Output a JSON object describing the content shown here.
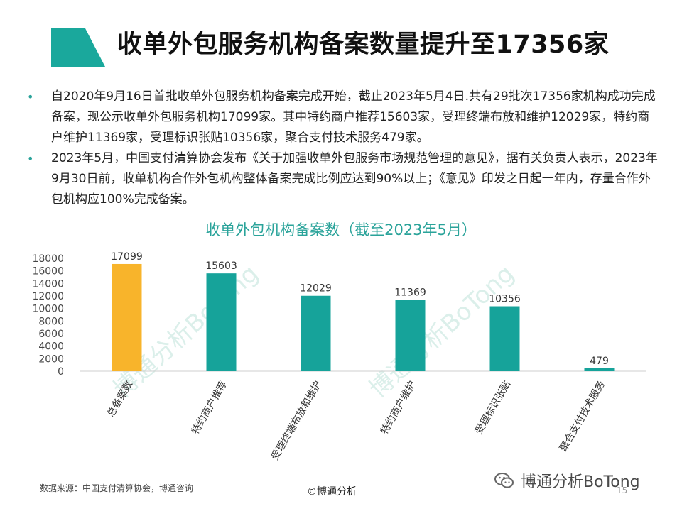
{
  "slide": {
    "title": "收单外包服务机构备案数量提升至17356家",
    "accent_color": "#2aa39a",
    "highlight_color": "#f8b42b",
    "bullets": [
      "自2020年9月16日首批收单外包服务机构备案完成开始，截止2023年5月4日.共有29批次17356家机构成功完成备案，现公示收单外包服务机构17099家。其中特约商户推荐15603家，受理终端布放和维护12029家，特约商户维护11369家，受理标识张贴10356家，聚合支付技术服务479家。",
      "2023年5月，中国支付清算协会发布《关于加强收单外包服务市场规范管理的意见》，据有关负责人表示，2023年9月30日前，收单机构合作外包机构整体备案完成比例应达到90%以上；《意见》印发之日起一年内，存量合作外包机构应100%完成备案。"
    ]
  },
  "chart_data": {
    "type": "bar",
    "title": "收单外包机构备案数（截至2023年5月）",
    "categories": [
      "总备案数",
      "特约商户推荐",
      "受理终端布放和维护",
      "特约商户维护",
      "受理标识张贴",
      "聚合支付技术服务"
    ],
    "values": [
      17099,
      15603,
      12029,
      11369,
      10356,
      479
    ],
    "bar_colors": [
      "#f8b42b",
      "#16a39a",
      "#16a39a",
      "#16a39a",
      "#16a39a",
      "#16a39a"
    ],
    "ylim": [
      0,
      18000
    ],
    "yticks": [
      0,
      2000,
      4000,
      6000,
      8000,
      10000,
      12000,
      14000,
      16000,
      18000
    ],
    "xlabel": "",
    "ylabel": "",
    "grid": false
  },
  "watermarks": [
    "博通分析BoTong",
    "博通分析BoTong",
    "博通分析BoTong"
  ],
  "footer": {
    "source": "数据来源：中国支付清算协会，博通咨询",
    "copyright": "©博通分析",
    "brand": "博通分析BoTong",
    "brand_icon": "wechat-icon",
    "page": "15"
  }
}
